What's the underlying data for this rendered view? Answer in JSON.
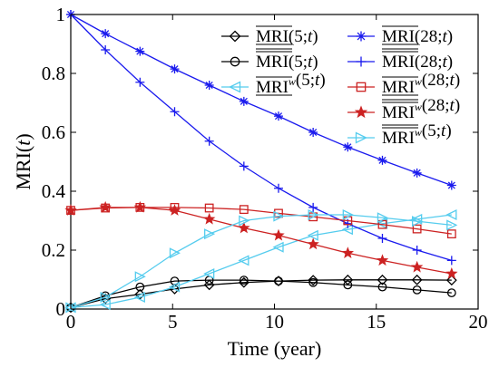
{
  "chart_data": {
    "type": "line",
    "xlabel": "Time (year)",
    "ylabel": "MRI(t)",
    "xlim": [
      0,
      20
    ],
    "ylim": [
      0,
      1
    ],
    "xticks": [
      0,
      5,
      10,
      15,
      20
    ],
    "yticks": [
      0,
      0.2,
      0.4,
      0.6,
      0.8,
      1
    ],
    "xtick_labels": [
      "0",
      "5",
      "10",
      "15",
      "20"
    ],
    "ytick_labels": [
      "0",
      "0.2",
      "0.4",
      "0.6",
      "0.8",
      "1"
    ],
    "grid": false,
    "legend_position": "top-right",
    "x": [
      0,
      1.7,
      3.4,
      5.1,
      6.8,
      8.5,
      10.2,
      11.9,
      13.6,
      15.3,
      17.0,
      18.7
    ],
    "series": [
      {
        "name": "MRI(5;t)",
        "overline": "under",
        "sup": "",
        "marker": "diamond",
        "color": "#000000",
        "values": [
          0.005,
          0.035,
          0.05,
          0.068,
          0.082,
          0.09,
          0.095,
          0.098,
          0.099,
          0.099,
          0.099,
          0.098
        ]
      },
      {
        "name": "MRI(5;t)",
        "overline": "over",
        "sup": "",
        "marker": "circle",
        "color": "#000000",
        "values": [
          0.005,
          0.045,
          0.075,
          0.095,
          0.098,
          0.098,
          0.095,
          0.09,
          0.082,
          0.075,
          0.065,
          0.055
        ]
      },
      {
        "name": "MRI(5;t)",
        "overline": "under",
        "sup": "w",
        "marker": "triangle-left",
        "color": "#55ccee",
        "values": [
          0.005,
          0.015,
          0.04,
          0.075,
          0.12,
          0.165,
          0.21,
          0.25,
          0.27,
          0.29,
          0.305,
          0.32
        ]
      },
      {
        "name": "MRI(28;t)",
        "overline": "under",
        "sup": "",
        "marker": "asterisk",
        "color": "#1a1aee",
        "values": [
          1.0,
          0.935,
          0.875,
          0.815,
          0.76,
          0.705,
          0.655,
          0.6,
          0.55,
          0.505,
          0.462,
          0.42
        ]
      },
      {
        "name": "MRI(28;t)",
        "overline": "over",
        "sup": "",
        "marker": "plus",
        "color": "#1a1aee",
        "values": [
          1.0,
          0.88,
          0.77,
          0.67,
          0.57,
          0.485,
          0.41,
          0.345,
          0.29,
          0.24,
          0.2,
          0.165
        ]
      },
      {
        "name": "MRI(28;t)",
        "overline": "under",
        "sup": "w",
        "marker": "square",
        "color": "#cc2222",
        "values": [
          0.335,
          0.343,
          0.345,
          0.345,
          0.343,
          0.338,
          0.325,
          0.313,
          0.3,
          0.287,
          0.272,
          0.255
        ]
      },
      {
        "name": "MRI(28;t)",
        "overline": "over",
        "sup": "w",
        "marker": "star",
        "color": "#cc2222",
        "values": [
          0.335,
          0.345,
          0.345,
          0.335,
          0.305,
          0.275,
          0.25,
          0.22,
          0.19,
          0.165,
          0.142,
          0.12
        ]
      },
      {
        "name": "MRI(5;t)",
        "overline": "over",
        "sup": "w",
        "marker": "triangle-right",
        "color": "#55ccee",
        "values": [
          0.005,
          0.04,
          0.11,
          0.19,
          0.255,
          0.3,
          0.315,
          0.32,
          0.32,
          0.31,
          0.298,
          0.285
        ]
      }
    ]
  }
}
